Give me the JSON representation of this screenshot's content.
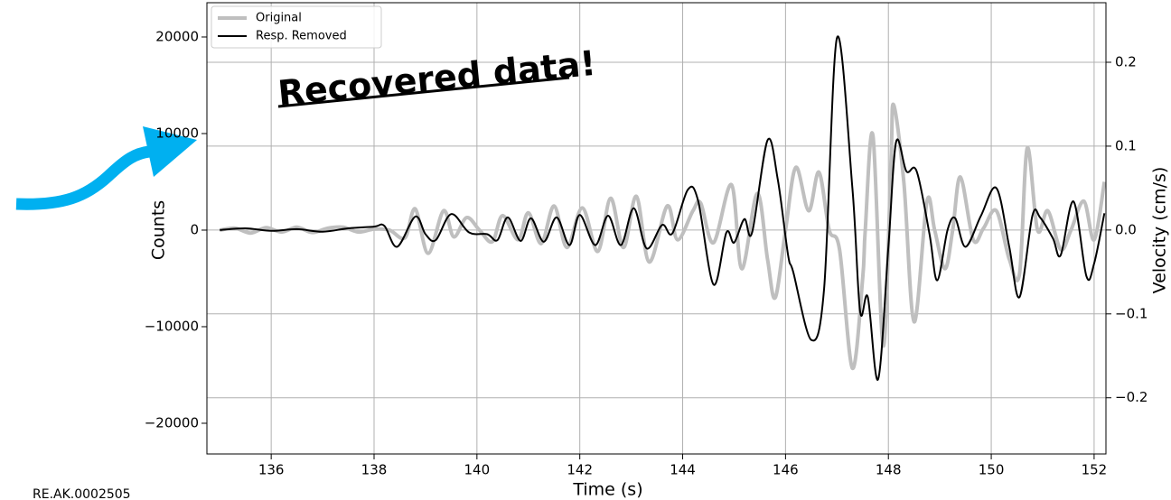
{
  "chart_data": {
    "type": "line",
    "annotation": "Recovered data!",
    "footer_text": "RE.AK.0002505",
    "xlabel": "Time (s)",
    "ylabel": "Counts",
    "y2label": "Velocity (cm/s)",
    "xlim": [
      134.75,
      152.23
    ],
    "xticks": [
      136,
      138,
      140,
      142,
      144,
      146,
      148,
      150,
      152
    ],
    "ylim": [
      -23180,
      23550
    ],
    "yticks": [
      {
        "value": -20000,
        "label": "−20000"
      },
      {
        "value": -10000,
        "label": "−10000"
      },
      0,
      10000,
      20000
    ],
    "y2lim": [
      -0.267,
      0.271
    ],
    "y2ticks": [
      {
        "value": -0.2,
        "label": "−0.2"
      },
      {
        "value": -0.1,
        "label": "−0.1"
      },
      {
        "value": 0,
        "label": "0.0"
      },
      0.1,
      0.2
    ],
    "grid": true,
    "legend": "upper left",
    "series": [
      {
        "name": "Original",
        "color": "#bfbfbf",
        "axis": "y",
        "x": [
          135.0,
          135.3,
          135.6,
          135.9,
          136.2,
          136.5,
          136.8,
          137.1,
          137.4,
          137.7,
          138.0,
          138.3,
          138.6,
          138.8,
          139.05,
          139.35,
          139.55,
          139.8,
          140.05,
          140.3,
          140.5,
          140.8,
          141.0,
          141.25,
          141.5,
          141.75,
          142.05,
          142.35,
          142.6,
          142.85,
          143.1,
          143.35,
          143.7,
          143.9,
          144.2,
          144.35,
          144.6,
          144.95,
          145.15,
          145.45,
          145.65,
          145.8,
          146.0,
          146.2,
          146.45,
          146.65,
          146.85,
          147.05,
          147.3,
          147.5,
          147.55,
          147.7,
          147.9,
          148.05,
          148.1,
          148.3,
          148.5,
          148.75,
          148.9,
          149.1,
          149.25,
          149.4,
          149.65,
          149.85,
          150.1,
          150.35,
          150.55,
          150.7,
          150.9,
          151.1,
          151.35,
          151.55,
          151.8,
          152.0,
          152.2
        ],
        "values": [
          0,
          200,
          -300,
          250,
          -200,
          300,
          -250,
          200,
          300,
          -200,
          100,
          0,
          -800,
          2200,
          -2400,
          2000,
          -700,
          1300,
          0,
          -1200,
          1500,
          -1000,
          1800,
          -1400,
          2500,
          -1800,
          2300,
          -2200,
          3300,
          -1800,
          3500,
          -3300,
          2500,
          -1000,
          2000,
          2800,
          -1300,
          4700,
          -4000,
          3800,
          -3000,
          -7000,
          0,
          6500,
          2000,
          6000,
          0,
          -2000,
          -14300,
          -5000,
          0,
          9800,
          -12000,
          7000,
          13000,
          5000,
          -9500,
          3000,
          0,
          -4000,
          0,
          5500,
          -1000,
          200,
          2000,
          -3000,
          -4500,
          8500,
          0,
          2000,
          -2000,
          0,
          3000,
          -1000,
          5000
        ]
      },
      {
        "name": "Resp. Removed",
        "color": "#000000",
        "axis": "y2",
        "x": [
          135.0,
          135.5,
          136.0,
          136.5,
          137.0,
          137.5,
          138.0,
          138.2,
          138.45,
          138.8,
          139.0,
          139.2,
          139.5,
          139.85,
          140.2,
          140.4,
          140.6,
          140.85,
          141.05,
          141.3,
          141.55,
          141.8,
          142.0,
          142.3,
          142.55,
          142.8,
          143.05,
          143.3,
          143.6,
          143.8,
          144.1,
          144.3,
          144.6,
          144.85,
          145.0,
          145.2,
          145.35,
          145.65,
          145.85,
          146.05,
          146.15,
          146.5,
          146.75,
          147.0,
          147.3,
          147.45,
          147.6,
          147.8,
          148.0,
          148.15,
          148.35,
          148.55,
          148.8,
          148.95,
          149.15,
          149.3,
          149.5,
          149.8,
          150.1,
          150.35,
          150.55,
          150.8,
          150.95,
          151.2,
          151.35,
          151.6,
          151.85,
          152.0,
          152.2
        ],
        "values": [
          0.0,
          0.002,
          -0.001,
          0.001,
          -0.002,
          0.002,
          0.004,
          0.005,
          -0.02,
          0.016,
          -0.005,
          -0.012,
          0.019,
          -0.003,
          -0.005,
          -0.012,
          0.015,
          -0.013,
          0.014,
          -0.014,
          0.015,
          -0.018,
          0.018,
          -0.018,
          0.017,
          -0.018,
          0.026,
          -0.022,
          0.006,
          -0.004,
          0.048,
          0.035,
          -0.065,
          -0.003,
          -0.015,
          0.013,
          -0.003,
          0.107,
          0.06,
          -0.03,
          -0.05,
          -0.131,
          -0.07,
          0.229,
          0.05,
          -0.097,
          -0.08,
          -0.178,
          -0.02,
          0.105,
          0.07,
          0.07,
          -0.005,
          -0.06,
          0.0,
          0.014,
          -0.02,
          0.017,
          0.05,
          -0.02,
          -0.08,
          0.017,
          0.015,
          -0.01,
          -0.03,
          0.034,
          -0.055,
          -0.04,
          0.02
        ]
      }
    ]
  }
}
